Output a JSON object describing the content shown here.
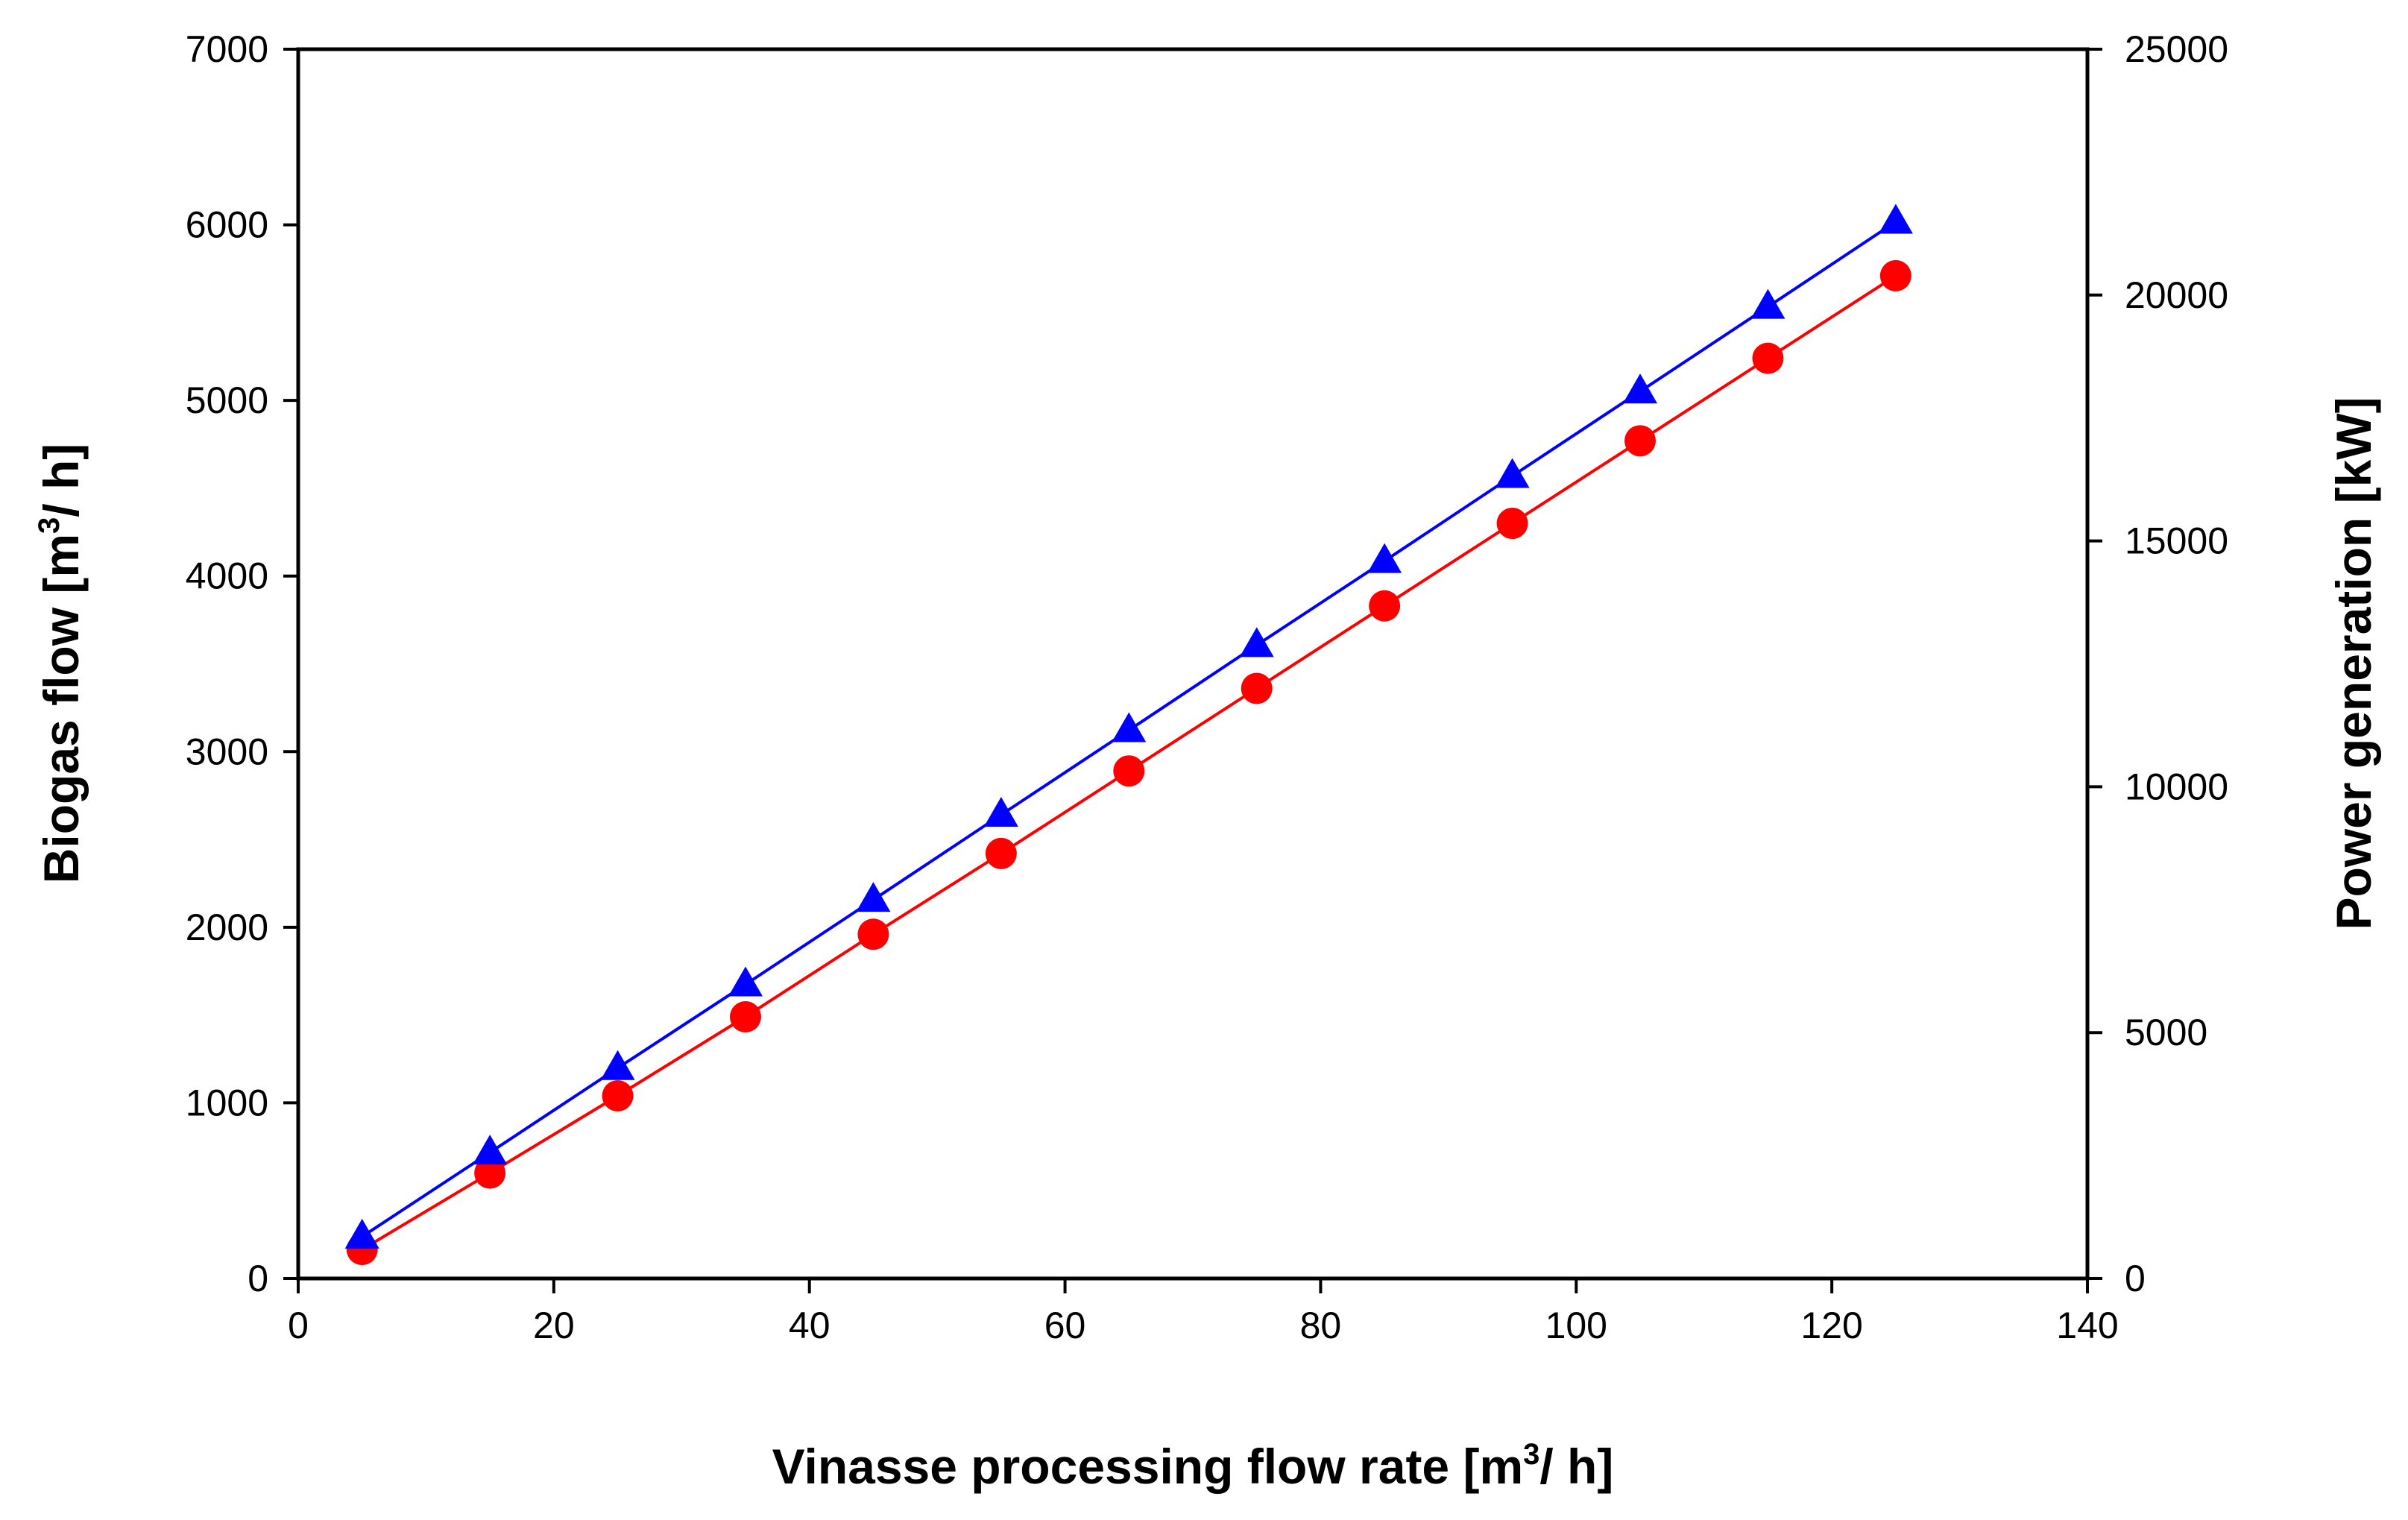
{
  "chart_data": {
    "type": "line",
    "title": "",
    "xlabel": {
      "prefix": "Vinasse processing flow rate [m",
      "sup": "3",
      "suffix": "/ h]"
    },
    "ylabel_left": {
      "prefix": "Biogas flow [m",
      "sup": "3",
      "suffix": "/ h]"
    },
    "ylabel_right": "Power generation [kW]",
    "xlim": [
      0,
      140
    ],
    "ylim_left": [
      0,
      7000
    ],
    "ylim_right": [
      0,
      25000
    ],
    "x_ticks": [
      0,
      20,
      40,
      60,
      80,
      100,
      120,
      140
    ],
    "y_left_ticks": [
      0,
      1000,
      2000,
      3000,
      4000,
      5000,
      6000,
      7000
    ],
    "y_right_ticks": [
      0,
      5000,
      10000,
      15000,
      20000,
      25000
    ],
    "x": [
      5,
      15,
      25,
      35,
      45,
      55,
      65,
      75,
      85,
      95,
      105,
      115,
      125
    ],
    "series": [
      {
        "name": "Biogas flow",
        "axis": "left",
        "marker": "circle",
        "color": "#ff0000",
        "values": [
          165,
          600,
          1040,
          1490,
          1960,
          2420,
          2890,
          3360,
          3830,
          4300,
          4770,
          5240,
          5710
        ]
      },
      {
        "name": "Power generation",
        "axis": "right",
        "marker": "triangle",
        "color": "#0000ff",
        "values": [
          850,
          2560,
          4280,
          5980,
          7700,
          9430,
          11150,
          12880,
          14590,
          16320,
          18040,
          19760,
          21490
        ]
      }
    ],
    "grid": false,
    "legend": "none"
  }
}
